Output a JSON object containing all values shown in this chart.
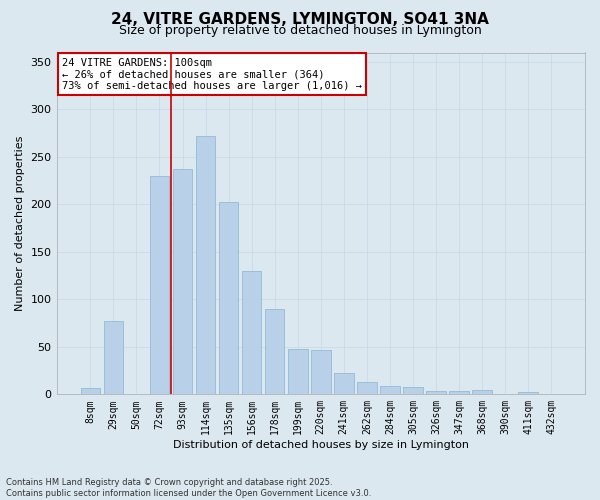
{
  "title1": "24, VITRE GARDENS, LYMINGTON, SO41 3NA",
  "title2": "Size of property relative to detached houses in Lymington",
  "xlabel": "Distribution of detached houses by size in Lymington",
  "ylabel": "Number of detached properties",
  "categories": [
    "8sqm",
    "29sqm",
    "50sqm",
    "72sqm",
    "93sqm",
    "114sqm",
    "135sqm",
    "156sqm",
    "178sqm",
    "199sqm",
    "220sqm",
    "241sqm",
    "262sqm",
    "284sqm",
    "305sqm",
    "326sqm",
    "347sqm",
    "368sqm",
    "390sqm",
    "411sqm",
    "432sqm"
  ],
  "values": [
    7,
    77,
    0,
    230,
    237,
    272,
    203,
    130,
    90,
    48,
    47,
    22,
    13,
    9,
    8,
    4,
    3,
    5,
    0,
    2,
    0
  ],
  "bar_color": "#b8d0e8",
  "bar_edge_color": "#8ab4d4",
  "vline_color": "#cc0000",
  "vline_x_index": 3.5,
  "annotation_text": "24 VITRE GARDENS: 100sqm\n← 26% of detached houses are smaller (364)\n73% of semi-detached houses are larger (1,016) →",
  "annotation_box_facecolor": "#ffffff",
  "annotation_box_edgecolor": "#cc0000",
  "grid_color": "#c8d8e8",
  "bg_color": "#dce8f0",
  "footnote": "Contains HM Land Registry data © Crown copyright and database right 2025.\nContains public sector information licensed under the Open Government Licence v3.0.",
  "ylim": [
    0,
    360
  ],
  "yticks": [
    0,
    50,
    100,
    150,
    200,
    250,
    300,
    350
  ],
  "title1_fontsize": 11,
  "title2_fontsize": 9,
  "xlabel_fontsize": 8,
  "ylabel_fontsize": 8,
  "xtick_fontsize": 7,
  "ytick_fontsize": 8,
  "footnote_fontsize": 6
}
